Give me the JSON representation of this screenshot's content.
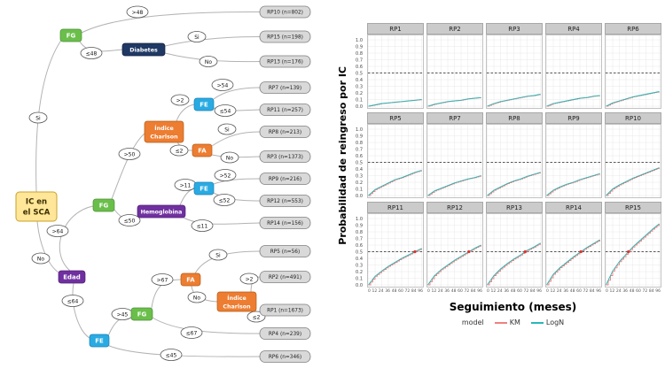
{
  "tree": {
    "root": {
      "label": "IC en el SCA",
      "line1": "IC en",
      "line2": "el SCA"
    },
    "nodes": {
      "fg_top": "FG",
      "diabetes": "Diabetes",
      "fg_mid": "FG",
      "ic_mid_line1": "Índice",
      "ic_mid_line2": "Charlson",
      "fe_top": "FE",
      "fa_mid": "FA",
      "fe_mid": "FE",
      "hemoglobina": "Hemoglobina",
      "edad": "Edad",
      "fg_bot": "FG",
      "fe_bot": "FE",
      "fa_bot": "FA",
      "ic_bot_line1": "Índice",
      "ic_bot_line2": "Charlson"
    },
    "edge_labels": {
      "si_root": "Si",
      "no_root": "No",
      "gt48": ">48",
      "le48": "≤48",
      "si_diab": "Si",
      "no_diab": "No",
      "gt64": ">64",
      "le64": "≤64",
      "gt50": ">50",
      "le50": "≤50",
      "gt2_mid": ">2",
      "le2_mid": "≤2",
      "gt54": ">54",
      "le54": "≤54",
      "si_fa": "Si",
      "no_fa": "No",
      "gt11": ">11",
      "le11": "≤11",
      "gt52": ">52",
      "le52": "≤52",
      "gt45": ">45",
      "le45": "≤45",
      "gt67": ">67",
      "le67": "≤67",
      "si_fab": "Si",
      "no_fab": "No",
      "gt2_bot": ">2",
      "le2_bot": "≤2"
    },
    "terminals": {
      "rp10": "RP10 (n=802)",
      "rp15": "RP15 (n=198)",
      "rp13": "RP13 (n=176)",
      "rp7": "RP7 (n=139)",
      "rp11": "RP11 (n=257)",
      "rp8": "RP8 (n=213)",
      "rp3": "RP3 (n=1373)",
      "rp9": "RP9 (n=216)",
      "rp12": "RP12 (n=553)",
      "rp14": "RP14 (n=156)",
      "rp5": "RP5 (n=56)",
      "rp2": "RP2 (n=491)",
      "rp1": "RP1 (n=1673)",
      "rp4": "RP4 (n=239)",
      "rp6": "RP6 (n=346)"
    },
    "edges": [
      {
        "from": "root",
        "label": "Si",
        "to": "fg_top"
      },
      {
        "from": "fg_top",
        "label": ">48",
        "to": "rp10"
      },
      {
        "from": "fg_top",
        "label": "≤48",
        "to": "diabetes"
      },
      {
        "from": "diabetes",
        "label": "Si",
        "to": "rp15"
      },
      {
        "from": "diabetes",
        "label": "No",
        "to": "rp13"
      },
      {
        "from": "root",
        "label": "No",
        "to": "edad"
      },
      {
        "from": "edad",
        "label": ">64",
        "to": "fg_mid"
      },
      {
        "from": "fg_mid",
        "label": ">50",
        "to": "ic_mid"
      },
      {
        "from": "ic_mid",
        "label": ">2",
        "to": "fe_top"
      },
      {
        "from": "fe_top",
        "label": ">54",
        "to": "rp7"
      },
      {
        "from": "fe_top",
        "label": "≤54",
        "to": "rp11"
      },
      {
        "from": "ic_mid",
        "label": "≤2",
        "to": "fa_mid"
      },
      {
        "from": "fa_mid",
        "label": "Si",
        "to": "rp8"
      },
      {
        "from": "fa_mid",
        "label": "No",
        "to": "rp3"
      },
      {
        "from": "fg_mid",
        "label": "≤50",
        "to": "hemoglobina"
      },
      {
        "from": "hemoglobina",
        "label": ">11",
        "to": "fe_mid"
      },
      {
        "from": "fe_mid",
        "label": ">52",
        "to": "rp9"
      },
      {
        "from": "fe_mid",
        "label": "≤52",
        "to": "rp12"
      },
      {
        "from": "hemoglobina",
        "label": "≤11",
        "to": "rp14"
      },
      {
        "from": "edad",
        "label": "≤64",
        "to": "fe_bot"
      },
      {
        "from": "fe_bot",
        "label": ">45",
        "to": "fg_bot"
      },
      {
        "from": "fg_bot",
        "label": ">67",
        "to": "fa_bot"
      },
      {
        "from": "fa_bot",
        "label": "Si",
        "to": "rp5"
      },
      {
        "from": "fa_bot",
        "label": "No",
        "to": "ic_bot"
      },
      {
        "from": "ic_bot",
        "label": ">2",
        "to": "rp2"
      },
      {
        "from": "ic_bot",
        "label": "≤2",
        "to": "rp1"
      },
      {
        "from": "fg_bot",
        "label": "≤67",
        "to": "rp4"
      },
      {
        "from": "fe_bot",
        "label": "≤45",
        "to": "rp6"
      }
    ],
    "colors": {
      "fg": "#6abf4b",
      "fe": "#29abe2",
      "fa": "#ed7d31",
      "charlson": "#ed7d31",
      "diabetes": "#1f3864",
      "edad": "#7030a0",
      "hemoglobina": "#7030a0",
      "root_bg": "#ffe699",
      "root_border": "#c9a227",
      "terminal_bg": "#d9d9d9"
    }
  },
  "chart_data": {
    "type": "line",
    "xlabel": "Seguimiento (meses)",
    "ylabel": "Probabilidad de reingreso por IC",
    "x": [
      0,
      12,
      24,
      36,
      48,
      60,
      72,
      84,
      96
    ],
    "x_tick_labels": [
      "0",
      "12",
      "24",
      "36",
      "48",
      "60",
      "72",
      "84",
      "96"
    ],
    "y_tick_labels": [
      "1.0",
      "0.9",
      "0.8",
      "0.7",
      "0.6",
      "0.5",
      "0.4",
      "0.3",
      "0.2",
      "0.1",
      "0.0"
    ],
    "ylim": [
      0,
      1
    ],
    "grid": true,
    "reference_line_y": 0.5,
    "legend": {
      "title": "model",
      "position": "bottom",
      "entries": [
        {
          "label": "KM",
          "color": "#f08080"
        },
        {
          "label": "LogN",
          "color": "#27b8b8"
        }
      ]
    },
    "facets": [
      {
        "name": "RP1",
        "km": [
          0,
          0.02,
          0.04,
          0.05,
          0.06,
          0.07,
          0.08,
          0.09,
          0.1
        ],
        "logn": [
          0,
          0.02,
          0.04,
          0.05,
          0.06,
          0.07,
          0.08,
          0.09,
          0.1
        ]
      },
      {
        "name": "RP2",
        "km": [
          0,
          0.03,
          0.05,
          0.07,
          0.08,
          0.09,
          0.11,
          0.12,
          0.13
        ],
        "logn": [
          0,
          0.03,
          0.05,
          0.07,
          0.08,
          0.09,
          0.11,
          0.12,
          0.13
        ]
      },
      {
        "name": "RP3",
        "km": [
          0,
          0.04,
          0.07,
          0.09,
          0.11,
          0.13,
          0.15,
          0.16,
          0.18
        ],
        "logn": [
          0,
          0.04,
          0.07,
          0.09,
          0.11,
          0.13,
          0.15,
          0.16,
          0.18
        ]
      },
      {
        "name": "RP4",
        "km": [
          0,
          0.04,
          0.06,
          0.08,
          0.1,
          0.12,
          0.13,
          0.15,
          0.16
        ],
        "logn": [
          0,
          0.04,
          0.06,
          0.08,
          0.1,
          0.12,
          0.13,
          0.15,
          0.16
        ]
      },
      {
        "name": "RP6",
        "km": [
          0,
          0.05,
          0.08,
          0.11,
          0.14,
          0.16,
          0.18,
          0.2,
          0.22
        ],
        "logn": [
          0,
          0.05,
          0.08,
          0.11,
          0.14,
          0.16,
          0.18,
          0.2,
          0.22
        ]
      },
      {
        "name": "RP5",
        "km": [
          0,
          0.09,
          0.14,
          0.19,
          0.24,
          0.27,
          0.31,
          0.35,
          0.38
        ],
        "logn": [
          0,
          0.09,
          0.14,
          0.19,
          0.24,
          0.27,
          0.31,
          0.35,
          0.38
        ]
      },
      {
        "name": "RP7",
        "km": [
          0,
          0.07,
          0.11,
          0.15,
          0.19,
          0.22,
          0.25,
          0.27,
          0.3
        ],
        "logn": [
          0,
          0.07,
          0.11,
          0.15,
          0.19,
          0.22,
          0.25,
          0.27,
          0.3
        ]
      },
      {
        "name": "RP8",
        "km": [
          0,
          0.08,
          0.13,
          0.18,
          0.22,
          0.25,
          0.29,
          0.32,
          0.35
        ],
        "logn": [
          0,
          0.08,
          0.13,
          0.18,
          0.22,
          0.25,
          0.29,
          0.32,
          0.35
        ]
      },
      {
        "name": "RP9",
        "km": [
          0,
          0.08,
          0.13,
          0.17,
          0.2,
          0.24,
          0.27,
          0.3,
          0.33
        ],
        "logn": [
          0,
          0.08,
          0.13,
          0.17,
          0.2,
          0.24,
          0.27,
          0.3,
          0.33
        ]
      },
      {
        "name": "RP10",
        "km": [
          0,
          0.1,
          0.16,
          0.21,
          0.26,
          0.3,
          0.34,
          0.38,
          0.42
        ],
        "logn": [
          0,
          0.1,
          0.16,
          0.21,
          0.26,
          0.3,
          0.34,
          0.38,
          0.42
        ]
      },
      {
        "name": "RP11",
        "km": [
          0,
          0.13,
          0.21,
          0.28,
          0.34,
          0.4,
          0.45,
          0.5,
          0.55
        ],
        "logn": [
          0,
          0.13,
          0.21,
          0.28,
          0.34,
          0.4,
          0.45,
          0.5,
          0.55
        ]
      },
      {
        "name": "RP12",
        "km": [
          0,
          0.14,
          0.23,
          0.3,
          0.37,
          0.43,
          0.49,
          0.55,
          0.6
        ],
        "logn": [
          0,
          0.14,
          0.23,
          0.3,
          0.37,
          0.43,
          0.49,
          0.55,
          0.6
        ]
      },
      {
        "name": "RP13",
        "km": [
          0,
          0.14,
          0.24,
          0.32,
          0.39,
          0.45,
          0.52,
          0.57,
          0.63
        ],
        "logn": [
          0,
          0.14,
          0.24,
          0.32,
          0.39,
          0.45,
          0.52,
          0.57,
          0.63
        ]
      },
      {
        "name": "RP14",
        "km": [
          0,
          0.16,
          0.26,
          0.34,
          0.42,
          0.49,
          0.56,
          0.62,
          0.68
        ],
        "logn": [
          0,
          0.16,
          0.26,
          0.34,
          0.42,
          0.49,
          0.56,
          0.62,
          0.68
        ]
      },
      {
        "name": "RP15",
        "km": [
          0,
          0.21,
          0.35,
          0.46,
          0.57,
          0.66,
          0.75,
          0.84,
          0.92
        ],
        "logn": [
          0,
          0.21,
          0.35,
          0.46,
          0.57,
          0.66,
          0.75,
          0.84,
          0.92
        ]
      }
    ]
  }
}
